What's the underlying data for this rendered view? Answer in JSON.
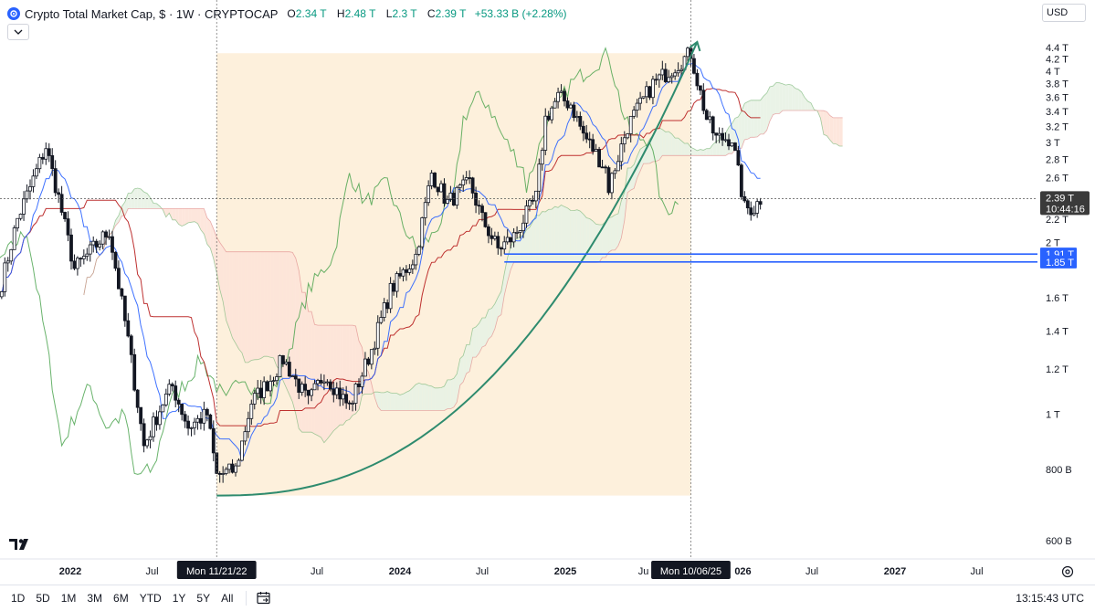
{
  "header": {
    "title": "Crypto Total Market Cap, $ · 1W · CRYPTOCAP",
    "open_label": "O",
    "open": "2.34 T",
    "high_label": "H",
    "high": "2.48 T",
    "low_label": "L",
    "low": "2.3 T",
    "close_label": "C",
    "close": "2.39 T",
    "change": "+53.33 B (+2.28%)"
  },
  "currency_select": "USD",
  "time_axis": {
    "labels": [
      "2022",
      "Jul",
      "Mon 11/21/22",
      "Jul",
      "2024",
      "Jul",
      "2025",
      "Ju",
      "Mon 10/06/25",
      "026",
      "Jul",
      "2027",
      "Jul"
    ],
    "highlight_1": "Mon 11/21/22",
    "highlight_2": "Mon 10/06/25"
  },
  "price_badges": {
    "last": "2.39 T",
    "countdown": "10:44:16",
    "level_1": "1.91 T",
    "level_2": "1.85 T"
  },
  "bottom_bar": {
    "ranges": [
      "1D",
      "5D",
      "1M",
      "3M",
      "6M",
      "YTD",
      "1Y",
      "5Y",
      "All"
    ],
    "clock": "13:15:43 UTC"
  },
  "icons": {
    "logo": "tradingview-logo",
    "calendar": "calendar-goto-icon",
    "settings": "settings-gear-icon",
    "chevron": "chevron-down-icon"
  },
  "colors": {
    "candle": "#131722",
    "highlight_zone": "#fdf0dc",
    "kumo_bull": "#e8f2e4",
    "kumo_bear": "#fde3d8",
    "tenkan": "#2962ff",
    "kijun": "#b71c1c",
    "chikou": "#43a047",
    "curve": "#2e8b6e",
    "support_line": "#2962ff"
  },
  "chart_data": {
    "type": "candlestick",
    "title": "Crypto Total Market Cap, $ · 1W · CRYPTOCAP",
    "scale": "log",
    "ylim": [
      0.56,
      4.6
    ],
    "y_ticks": [
      "600 B",
      "800 B",
      "1 T",
      "1.2 T",
      "1.4 T",
      "1.6 T",
      "2 T",
      "2.2 T",
      "2.4 T",
      "2.6 T",
      "2.8 T",
      "3 T",
      "3.2 T",
      "3.4 T",
      "3.6 T",
      "3.8 T",
      "4 T",
      "4.2 T",
      "4.4 T"
    ],
    "y_tick_values": [
      0.6,
      0.8,
      1.0,
      1.2,
      1.4,
      1.6,
      2.0,
      2.2,
      2.4,
      2.6,
      2.8,
      3.0,
      3.2,
      3.4,
      3.6,
      3.8,
      4.0,
      4.2,
      4.4
    ],
    "x_range": [
      "2021-11-01",
      "2027-11-01"
    ],
    "highlight_range": [
      "2022-11-21",
      "2025-10-06"
    ],
    "horizontal_levels": [
      1.91,
      1.85
    ],
    "last_close": 2.39,
    "price_path": [
      [
        "2021-08-02",
        1.7
      ],
      [
        "2021-09-06",
        2.2
      ],
      [
        "2021-10-04",
        2.5
      ],
      [
        "2021-11-08",
        2.95
      ],
      [
        "2021-12-06",
        2.4
      ],
      [
        "2022-01-10",
        1.8
      ],
      [
        "2022-02-07",
        1.9
      ],
      [
        "2022-03-28",
        2.1
      ],
      [
        "2022-05-09",
        1.35
      ],
      [
        "2022-06-13",
        0.88
      ],
      [
        "2022-07-25",
        1.05
      ],
      [
        "2022-08-15",
        1.12
      ],
      [
        "2022-09-19",
        0.95
      ],
      [
        "2022-10-31",
        1.0
      ],
      [
        "2022-11-21",
        0.78
      ],
      [
        "2023-01-02",
        0.8
      ],
      [
        "2023-02-06",
        1.05
      ],
      [
        "2023-03-20",
        1.15
      ],
      [
        "2023-04-17",
        1.25
      ],
      [
        "2023-06-12",
        1.05
      ],
      [
        "2023-07-17",
        1.18
      ],
      [
        "2023-09-11",
        1.03
      ],
      [
        "2023-10-30",
        1.3
      ],
      [
        "2023-12-11",
        1.65
      ],
      [
        "2024-02-05",
        1.9
      ],
      [
        "2024-03-11",
        2.65
      ],
      [
        "2024-04-15",
        2.35
      ],
      [
        "2024-06-03",
        2.55
      ],
      [
        "2024-07-01",
        2.2
      ],
      [
        "2024-08-05",
        1.95
      ],
      [
        "2024-09-09",
        2.05
      ],
      [
        "2024-10-28",
        2.4
      ],
      [
        "2024-11-18",
        3.3
      ],
      [
        "2024-12-16",
        3.6
      ],
      [
        "2025-01-13",
        3.5
      ],
      [
        "2025-02-10",
        3.1
      ],
      [
        "2025-03-31",
        2.7
      ],
      [
        "2025-04-07",
        2.5
      ],
      [
        "2025-05-19",
        3.2
      ],
      [
        "2025-07-14",
        3.8
      ],
      [
        "2025-08-18",
        4.0
      ],
      [
        "2025-10-06",
        4.3
      ],
      [
        "2025-10-20",
        3.85
      ],
      [
        "2025-11-10",
        3.3
      ],
      [
        "2025-12-01",
        3.05
      ],
      [
        "2026-01-05",
        3.05
      ],
      [
        "2026-02-02",
        2.3
      ],
      [
        "2026-02-23",
        2.3
      ],
      [
        "2026-03-09",
        2.39
      ]
    ],
    "curve_target": 4.5
  }
}
